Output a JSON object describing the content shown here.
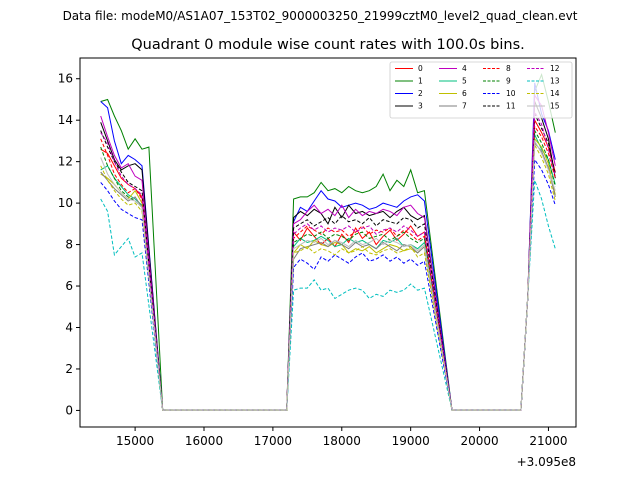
{
  "chart_data": {
    "type": "line",
    "suptitle": "Data file: modeM0/AS1A07_153T02_9000003250_21999cztM0_level2_quad_clean.evt",
    "title": "Quadrant 0 module wise count rates with 100.0s bins.",
    "xlabel": "",
    "ylabel": "",
    "offset_label": "+3.095e8",
    "xlim": [
      14200,
      21400
    ],
    "ylim": [
      -0.8,
      17
    ],
    "xticks": [
      15000,
      16000,
      17000,
      18000,
      19000,
      20000,
      21000
    ],
    "xtick_labels": [
      "15000",
      "16000",
      "17000",
      "18000",
      "19000",
      "20000",
      "21000"
    ],
    "yticks": [
      0,
      2,
      4,
      6,
      8,
      10,
      12,
      14,
      16
    ],
    "ytick_labels": [
      "0",
      "2",
      "4",
      "6",
      "8",
      "10",
      "12",
      "14",
      "16"
    ],
    "legend_position": "top-right",
    "x_start": 14500,
    "bin": 100,
    "gaps": [
      [
        15400,
        17200
      ],
      [
        19600,
        20600
      ]
    ],
    "series": [
      {
        "name": "0",
        "color": "#ff0000",
        "dash": "solid",
        "seg1": [
          12.6,
          12.4,
          11.8,
          11.2,
          10.9,
          10.7,
          10.3
        ],
        "seg2": [
          8.6,
          8.2,
          8.8,
          8.4,
          8.0,
          8.3,
          7.9,
          8.5,
          8.1,
          8.8,
          8.3,
          8.6,
          8.0,
          8.4,
          8.7,
          8.2,
          8.5,
          8.9,
          8.4,
          8.6
        ],
        "seg3": [
          14.0,
          13.4,
          12.7,
          11.5
        ]
      },
      {
        "name": "1",
        "color": "#008000",
        "dash": "solid",
        "seg1": [
          14.9,
          15.0,
          14.2,
          13.5,
          12.6,
          13.1,
          12.6,
          12.7
        ],
        "seg2": [
          10.2,
          10.3,
          10.3,
          10.5,
          11.0,
          10.6,
          10.7,
          10.5,
          10.8,
          10.6,
          10.5,
          10.6,
          10.8,
          11.4,
          10.6,
          11.1,
          10.8,
          11.6,
          10.5,
          10.6
        ],
        "seg3": [
          15.4,
          16.2,
          14.9,
          13.4
        ]
      },
      {
        "name": "2",
        "color": "#0000ff",
        "dash": "solid",
        "seg1": [
          14.9,
          14.6,
          13.0,
          11.9,
          12.3,
          12.1,
          11.8
        ],
        "seg2": [
          9.1,
          9.8,
          9.6,
          10.1,
          10.6,
          10.2,
          10.1,
          9.8,
          9.9,
          10.0,
          9.9,
          9.7,
          9.8,
          10.0,
          9.9,
          9.8,
          10.1,
          10.3,
          10.4,
          10.1
        ],
        "seg3": [
          15.8,
          14.3,
          13.5,
          12.1
        ]
      },
      {
        "name": "3",
        "color": "#000000",
        "dash": "solid",
        "seg1": [
          13.9,
          13.0,
          12.1,
          11.6,
          11.8,
          11.9,
          11.6
        ],
        "seg2": [
          9.3,
          9.6,
          9.4,
          9.7,
          9.5,
          9.0,
          9.8,
          9.3,
          9.9,
          9.5,
          9.6,
          9.4,
          9.5,
          9.6,
          9.3,
          9.6,
          9.8,
          9.4,
          9.2,
          9.4
        ],
        "seg3": [
          14.9,
          14.1,
          13.1,
          11.2
        ]
      },
      {
        "name": "4",
        "color": "#bf00bf",
        "dash": "solid",
        "seg1": [
          14.2,
          13.2,
          12.3,
          11.7,
          11.9,
          11.3,
          11.1
        ],
        "seg2": [
          9.0,
          9.2,
          9.6,
          9.9,
          9.5,
          9.7,
          9.4,
          9.9,
          9.3,
          9.7,
          9.4,
          9.6,
          9.5,
          9.7,
          9.6,
          9.4,
          9.8,
          9.9,
          9.5,
          9.3
        ],
        "seg3": [
          15.2,
          14.7,
          13.4,
          11.8
        ]
      },
      {
        "name": "5",
        "color": "#00bf7f",
        "dash": "solid",
        "seg1": [
          11.6,
          11.8,
          11.2,
          10.8,
          10.4,
          10.2,
          9.9
        ],
        "seg2": [
          7.9,
          8.3,
          8.1,
          8.2,
          8.4,
          8.2,
          7.9,
          8.0,
          8.3,
          8.1,
          8.2,
          8.0,
          7.8,
          8.2,
          8.1,
          8.3,
          7.9,
          8.0,
          7.8,
          8.1
        ],
        "seg3": [
          13.3,
          12.6,
          12.1,
          10.9
        ]
      },
      {
        "name": "6",
        "color": "#bfbf00",
        "dash": "solid",
        "seg1": [
          11.4,
          11.2,
          10.9,
          10.5,
          10.2,
          10.6,
          10.0
        ],
        "seg2": [
          7.6,
          8.0,
          7.8,
          8.2,
          8.0,
          7.9,
          8.1,
          8.0,
          7.6,
          7.8,
          7.7,
          7.9,
          7.6,
          7.8,
          8.0,
          7.9,
          7.7,
          7.8,
          7.6,
          7.9
        ],
        "seg3": [
          13.1,
          12.7,
          11.9,
          10.4
        ]
      },
      {
        "name": "7",
        "color": "#7f7f7f",
        "dash": "solid",
        "seg1": [
          11.5,
          11.1,
          10.7,
          10.4,
          10.1,
          10.3,
          9.8
        ],
        "seg2": [
          7.3,
          7.8,
          7.9,
          8.0,
          8.1,
          7.9,
          8.2,
          8.0,
          7.8,
          8.1,
          7.9,
          8.0,
          7.8,
          8.1,
          7.9,
          7.7,
          8.0,
          7.9,
          7.6,
          7.9
        ],
        "seg3": [
          12.9,
          12.5,
          11.7,
          10.3
        ]
      },
      {
        "name": "8",
        "color": "#ff0000",
        "dash": "dashed",
        "seg1": [
          13.1,
          12.3,
          11.4,
          10.9,
          10.5,
          10.7,
          10.2
        ],
        "seg2": [
          8.3,
          8.6,
          8.9,
          8.7,
          8.5,
          8.8,
          8.6,
          8.7,
          8.4,
          8.6,
          8.9,
          8.5,
          8.7,
          8.6,
          8.8,
          8.4,
          8.7,
          8.5,
          8.2,
          8.4
        ],
        "seg3": [
          13.7,
          13.2,
          12.4,
          11.2
        ]
      },
      {
        "name": "9",
        "color": "#008000",
        "dash": "dashed",
        "seg1": [
          12.7,
          11.8,
          11.2,
          10.6,
          10.3,
          10.1,
          9.8
        ],
        "seg2": [
          8.1,
          8.3,
          8.5,
          8.4,
          8.6,
          8.3,
          8.5,
          8.4,
          8.2,
          8.5,
          8.6,
          8.3,
          8.4,
          8.5,
          8.2,
          8.4,
          8.6,
          8.3,
          8.1,
          8.3
        ],
        "seg3": [
          13.5,
          12.9,
          12.1,
          10.8
        ]
      },
      {
        "name": "10",
        "color": "#0000ff",
        "dash": "dashed",
        "seg1": [
          11.0,
          10.6,
          10.1,
          9.7,
          9.5,
          9.3,
          9.2
        ],
        "seg2": [
          6.9,
          7.3,
          7.1,
          6.8,
          7.4,
          7.2,
          7.5,
          7.3,
          7.1,
          7.4,
          7.6,
          7.2,
          7.3,
          7.5,
          7.2,
          7.4,
          7.1,
          7.3,
          7.0,
          7.2
        ],
        "seg3": [
          12.1,
          11.6,
          10.9,
          9.9
        ]
      },
      {
        "name": "11",
        "color": "#000000",
        "dash": "dashed",
        "seg1": [
          13.5,
          12.7,
          12.0,
          11.5,
          11.0,
          10.8,
          10.6
        ],
        "seg2": [
          8.8,
          9.0,
          9.2,
          8.9,
          9.1,
          9.3,
          9.0,
          9.4,
          9.1,
          9.2,
          9.0,
          9.3,
          8.9,
          9.2,
          9.1,
          9.0,
          9.3,
          9.2,
          8.8,
          9.0
        ],
        "seg3": [
          14.3,
          13.6,
          12.9,
          11.4
        ]
      },
      {
        "name": "12",
        "color": "#bf00bf",
        "dash": "dashed",
        "seg1": [
          13.4,
          12.9,
          12.0,
          11.3,
          10.9,
          10.7,
          10.4
        ],
        "seg2": [
          8.5,
          8.8,
          9.0,
          8.7,
          8.9,
          8.6,
          8.8,
          8.7,
          8.9,
          8.6,
          8.8,
          8.9,
          8.5,
          8.7,
          8.8,
          8.6,
          8.9,
          8.7,
          8.4,
          8.6
        ],
        "seg3": [
          14.4,
          13.8,
          12.6,
          11.3
        ]
      },
      {
        "name": "13",
        "color": "#00bfbf",
        "dash": "dashed",
        "seg1": [
          10.2,
          9.6,
          7.5,
          7.9,
          8.3,
          7.4,
          7.6
        ],
        "seg2": [
          5.8,
          5.9,
          5.9,
          6.3,
          5.8,
          5.9,
          5.4,
          5.6,
          5.8,
          5.9,
          5.8,
          5.4,
          5.6,
          5.5,
          5.8,
          5.7,
          5.8,
          6.1,
          5.8,
          5.9
        ],
        "seg3": [
          11.1,
          10.2,
          8.9,
          7.8
        ]
      },
      {
        "name": "14",
        "color": "#bfbf00",
        "dash": "dashed",
        "seg1": [
          11.8,
          11.1,
          10.6,
          10.2,
          9.9,
          10.0,
          9.6
        ],
        "seg2": [
          7.6,
          7.7,
          7.9,
          7.6,
          7.8,
          7.7,
          7.5,
          7.8,
          7.6,
          7.7,
          7.9,
          7.6,
          7.5,
          7.7,
          7.8,
          7.6,
          7.7,
          7.9,
          7.4,
          7.6
        ],
        "seg3": [
          12.8,
          12.2,
          11.4,
          10.1
        ]
      },
      {
        "name": "15",
        "color": "#bfbfbf",
        "dash": "solid",
        "seg1": [
          12.2,
          11.4,
          10.9,
          10.5,
          10.2,
          10.1,
          9.8
        ],
        "seg2": [
          7.8,
          8.0,
          8.2,
          8.1,
          8.3,
          8.0,
          8.2,
          8.1,
          7.9,
          8.2,
          8.0,
          8.1,
          8.3,
          8.0,
          8.2,
          8.1,
          7.9,
          8.0,
          7.7,
          8.0
        ],
        "seg3": [
          13.0,
          12.4,
          11.6,
          10.6
        ]
      }
    ]
  }
}
